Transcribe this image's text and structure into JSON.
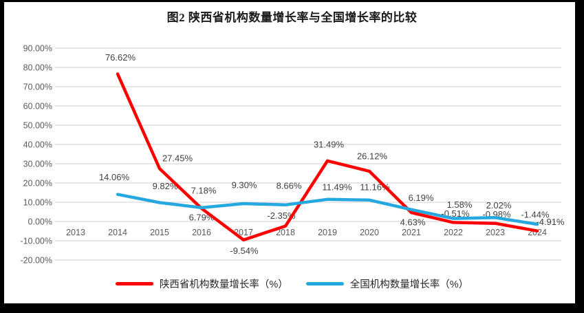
{
  "title": "图2 陕西省机构数量增长率与全国增长率的比较",
  "colors": {
    "gridline": "#D9D9D9",
    "axis_text": "#595959",
    "data_label_text": "#404040",
    "title_text": "#1A1A1A",
    "legend_text": "#262626",
    "frame": "#000000",
    "background": "#FFFFFF"
  },
  "chart_data": {
    "type": "line",
    "title": "图2 陕西省机构数量增长率与全国增长率的比较",
    "categories": [
      "2013",
      "2014",
      "2015",
      "2016",
      "2017",
      "2018",
      "2019",
      "2020",
      "2021",
      "2022",
      "2023",
      "2024"
    ],
    "series": [
      {
        "key": "shaanxi",
        "name": "陕西省机构数量增长率（%）",
        "color": "#FE0000",
        "values": [
          null,
          76.62,
          27.45,
          6.79,
          -9.54,
          -2.35,
          31.49,
          26.12,
          4.63,
          -0.51,
          -0.98,
          -4.91
        ],
        "data_labels": [
          null,
          "76.62%",
          "27.45%",
          "6.79%",
          "-9.54%",
          "-2.35%",
          "31.49%",
          "26.12%",
          "4.63%",
          "-0.51%",
          "-0.98%",
          "-4.91%"
        ],
        "label_offsets": [
          null,
          [
            4,
            -24
          ],
          [
            26,
            -15
          ],
          [
            0,
            13
          ],
          [
            1,
            16
          ],
          [
            -6,
            -15
          ],
          [
            2,
            -24
          ],
          [
            4,
            -22
          ],
          [
            2,
            14
          ],
          [
            3,
            -13
          ],
          [
            2,
            -13
          ],
          [
            19,
            -13
          ]
        ]
      },
      {
        "key": "national",
        "name": "全国机构数量增长率（%）",
        "color": "#25A8DF",
        "values": [
          null,
          14.06,
          9.82,
          7.18,
          9.3,
          8.66,
          11.49,
          11.16,
          6.19,
          1.58,
          2.02,
          -1.44
        ],
        "data_labels": [
          null,
          "14.06%",
          "9.82%",
          "7.18%",
          "9.30%",
          "8.66%",
          "11.49%",
          "11.16%",
          "6.19%",
          "1.58%",
          "2.02%",
          "-1.44%"
        ],
        "label_offsets": [
          null,
          [
            -5,
            -25
          ],
          [
            8,
            -24
          ],
          [
            3,
            -25
          ],
          [
            1,
            -27
          ],
          [
            5,
            -28
          ],
          [
            14,
            -18
          ],
          [
            8,
            -19
          ],
          [
            14,
            -17
          ],
          [
            9,
            -20
          ],
          [
            5,
            -18
          ],
          [
            -3,
            -14
          ]
        ]
      }
    ],
    "y_axis": {
      "min": -20,
      "max": 90,
      "step": 10,
      "tick_labels": [
        "90.00%",
        "80.00%",
        "70.00%",
        "60.00%",
        "50.00%",
        "40.00%",
        "30.00%",
        "20.00%",
        "10.00%",
        "0.00%",
        "-10.00%",
        "-20.00%"
      ]
    },
    "grid": true,
    "legend_position": "bottom"
  },
  "legend": {
    "items": [
      {
        "label": "陕西省机构数量增长率（%）",
        "color": "#FE0000"
      },
      {
        "label": "全国机构数量增长率（%）",
        "color": "#25A8DF"
      }
    ]
  }
}
